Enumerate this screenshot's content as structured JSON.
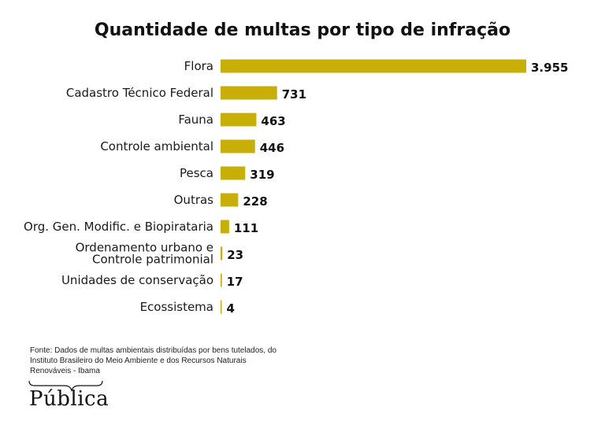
{
  "chart_data": {
    "type": "bar",
    "orientation": "horizontal",
    "title": "Quantidade de multas por tipo de infração",
    "categories": [
      [
        "Flora"
      ],
      [
        "Cadastro Técnico Federal"
      ],
      [
        "Fauna"
      ],
      [
        "Controle ambiental"
      ],
      [
        "Pesca"
      ],
      [
        "Outras"
      ],
      [
        "Org. Gen. Modific. e Biopirataria"
      ],
      [
        "Ordenamento urbano e",
        "Controle patrimonial"
      ],
      [
        "Unidades de conservação"
      ],
      [
        "Ecossistema"
      ]
    ],
    "values": [
      3955,
      731,
      463,
      446,
      319,
      228,
      111,
      23,
      17,
      4
    ],
    "value_labels": [
      "3.955",
      "731",
      "463",
      "446",
      "319",
      "228",
      "111",
      "23",
      "17",
      "4"
    ],
    "xlim": [
      0,
      3955
    ],
    "bar_color": "#c7af08",
    "grid": false,
    "legend": "none"
  },
  "source": "Fonte:  Dados de multas ambientais distribuídas por bens tutelados, do Instituto Brasileiro do Meio Ambiente e dos Recursos Naturais Renováveis - Ibama",
  "brand": "Pública"
}
